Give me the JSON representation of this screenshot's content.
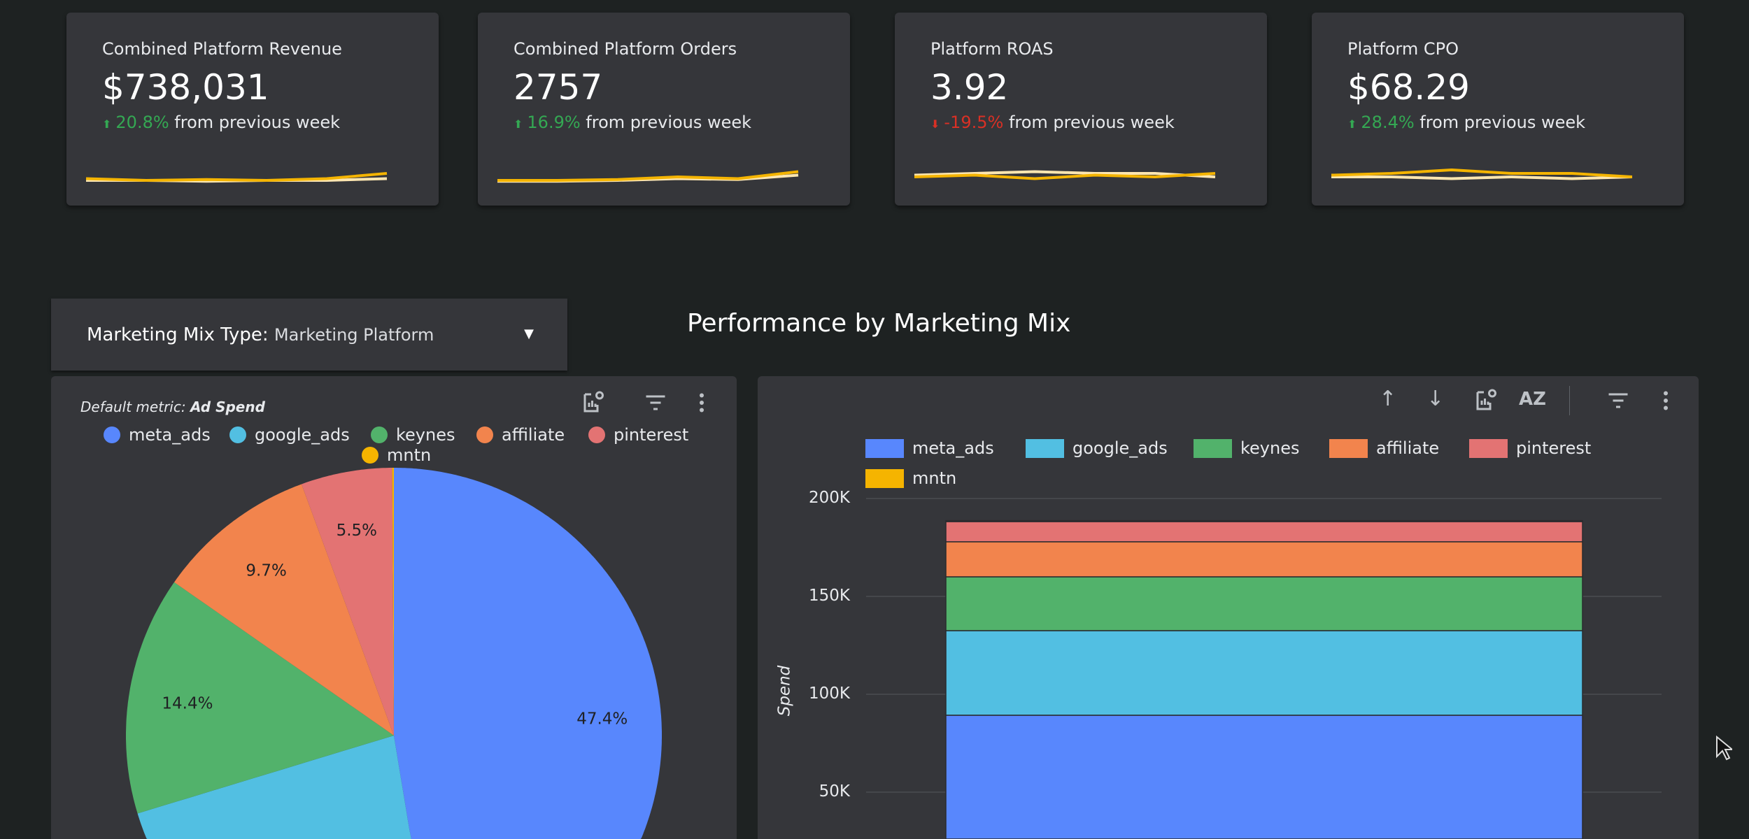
{
  "kpis": [
    {
      "title": "Combined Platform Revenue",
      "value": "$738,031",
      "change": "20.8%",
      "direction": "up",
      "suffix": "from previous week",
      "spark_current": [
        3,
        2,
        2.5,
        2,
        3,
        6
      ],
      "spark_previous": [
        2,
        2,
        1.5,
        2,
        2,
        3
      ]
    },
    {
      "title": "Combined Platform Orders",
      "value": "2757",
      "change": "16.9%",
      "direction": "up",
      "suffix": "from previous week",
      "spark_current": [
        2,
        2,
        2.5,
        4,
        3,
        7
      ],
      "spark_previous": [
        1.5,
        1.5,
        2,
        3,
        2.5,
        5
      ]
    },
    {
      "title": "Platform ROAS",
      "value": "3.92",
      "change": "-19.5%",
      "direction": "down",
      "suffix": "from previous week",
      "spark_current": [
        4,
        5,
        3,
        5,
        4,
        6
      ],
      "spark_previous": [
        5,
        6,
        7,
        6,
        6,
        4
      ]
    },
    {
      "title": "Platform CPO",
      "value": "$68.29",
      "change": "28.4%",
      "direction": "up",
      "suffix": "from previous week",
      "spark_current": [
        5,
        6,
        8,
        6,
        6,
        4
      ],
      "spark_previous": [
        4,
        4,
        3,
        4,
        3,
        4
      ]
    }
  ],
  "colors": {
    "up": "#34a853",
    "down": "#d93025",
    "spark_current": "#f4b400",
    "spark_previous": "#fde6b0"
  },
  "filter": {
    "label": "Marketing Mix Type:",
    "value": "Marketing Platform",
    "icon": "caret-down-icon"
  },
  "section_title": "Performance by Marketing Mix",
  "pie_panel": {
    "note_prefix": "Default metric:",
    "note_metric": "Ad Spend",
    "icons": [
      "chart-settings-icon",
      "filter-icon",
      "more-vert-icon"
    ]
  },
  "bar_panel": {
    "icons": [
      "sort-ascending-icon",
      "sort-descending-icon",
      "chart-settings-icon",
      "sort-az-icon",
      "filter-icon",
      "more-vert-icon"
    ]
  },
  "chart_data": [
    {
      "type": "pie",
      "metric": "Ad Spend",
      "categories": [
        "meta_ads",
        "google_ads",
        "keynes",
        "affiliate",
        "pinterest",
        "mntn"
      ],
      "values": [
        47.4,
        22.9,
        14.4,
        9.7,
        5.5,
        0.1
      ],
      "labels": [
        "47.4%",
        null,
        "14.4%",
        "9.7%",
        "5.5%",
        null
      ],
      "colors": [
        "#5887fd",
        "#52bfe2",
        "#52b26b",
        "#f2844d",
        "#e37373",
        "#f5b400"
      ],
      "legend": "top"
    },
    {
      "type": "bar",
      "stacked": true,
      "categories": [
        ""
      ],
      "series": [
        {
          "name": "meta_ads",
          "values": [
            89300
          ],
          "color": "#5887fd"
        },
        {
          "name": "google_ads",
          "values": [
            43200
          ],
          "color": "#52bfe2"
        },
        {
          "name": "keynes",
          "values": [
            27500
          ],
          "color": "#52b26b"
        },
        {
          "name": "affiliate",
          "values": [
            17900
          ],
          "color": "#f2844d"
        },
        {
          "name": "pinterest",
          "values": [
            10300
          ],
          "color": "#e37373"
        },
        {
          "name": "mntn",
          "values": [
            500
          ],
          "color": "#f5b400"
        }
      ],
      "ylabel": "Spend",
      "yticks": [
        "50K",
        "100K",
        "150K",
        "200K"
      ],
      "ytick_values": [
        50000,
        100000,
        150000,
        200000
      ],
      "grid": true,
      "legend": "top"
    }
  ]
}
